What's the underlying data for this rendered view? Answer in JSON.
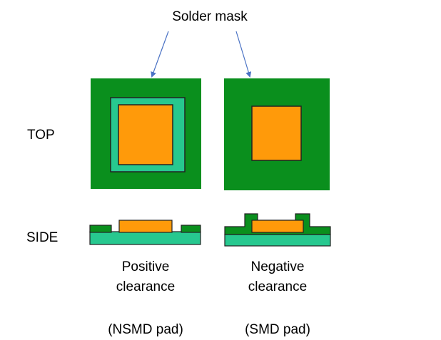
{
  "title": "Solder mask",
  "row_labels": {
    "top": "TOP",
    "side": "SIDE"
  },
  "columns": [
    {
      "caption_line1": "Positive",
      "caption_line2": "clearance",
      "pad_type": "(NSMD pad)"
    },
    {
      "caption_line1": "Negative",
      "caption_line2": "clearance",
      "pad_type": "(SMD pad)"
    }
  ],
  "colors": {
    "solder_mask": "#0a8f1d",
    "substrate": "#27c88f",
    "copper_pad": "#ff9a0a",
    "outline": "#222222",
    "arrow": "#4a72c4"
  }
}
